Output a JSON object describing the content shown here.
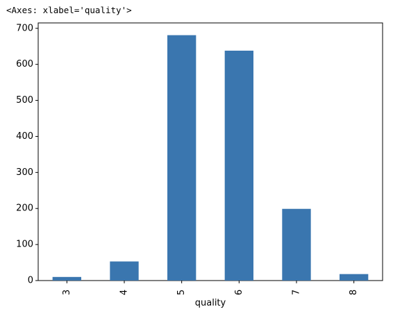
{
  "output": {
    "repr": "<Axes: xlabel='quality'>"
  },
  "chart_data": {
    "type": "bar",
    "categories": [
      "3",
      "4",
      "5",
      "6",
      "7",
      "8"
    ],
    "values": [
      10,
      53,
      681,
      638,
      199,
      18
    ],
    "xlabel": "quality",
    "ylabel": "",
    "title": "",
    "ylim": [
      0,
      715
    ],
    "yticks": [
      0,
      100,
      200,
      300,
      400,
      500,
      600,
      700
    ],
    "grid": false,
    "legend": "none",
    "bar_color": "#3a76af",
    "xtick_rotation": "vertical"
  }
}
